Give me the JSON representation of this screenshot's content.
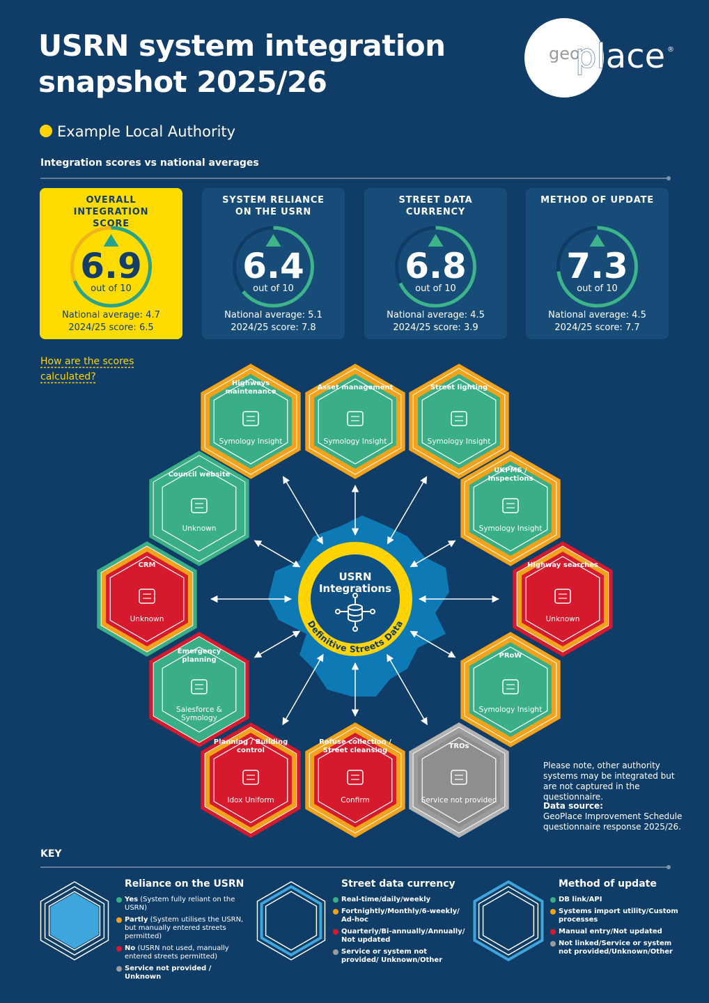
{
  "header": {
    "title": "USRN system integration snapshot 2025/26",
    "logo": {
      "prefix": "geo",
      "name": "place",
      "registered": "®"
    }
  },
  "authority": "Example Local Authority",
  "section_title": "Integration scores vs national averages",
  "scale": {
    "prefix": "out of",
    "max": 10
  },
  "scores": [
    {
      "title": "OVERALL INTEGRATION SCORE",
      "score": 6.9,
      "national": "National average: 4.7",
      "previous": "2024/25 score: 6.5"
    },
    {
      "title": "SYSTEM RELIANCE ON THE USRN",
      "score": 6.4,
      "national": "National average: 5.1",
      "previous": "2024/25 score: 7.8"
    },
    {
      "title": "STREET DATA CURRENCY",
      "score": 6.8,
      "national": "National average: 4.5",
      "previous": "2024/25 score: 3.9"
    },
    {
      "title": "METHOD OF UPDATE",
      "score": 7.3,
      "national": "National average: 4.5",
      "previous": "2024/25 score: 7.7"
    }
  ],
  "help_link": "How are the scores calculated?",
  "center": {
    "title": "USRN Integrations",
    "caption": "Definitive Streets Data"
  },
  "nodes": [
    {
      "label": "Highways maintenance",
      "system": "Symology Insight",
      "method": "#f2a31b",
      "currency": "#f2a31b",
      "reliance": "#3aae84"
    },
    {
      "label": "Asset management",
      "system": "Symology Insight",
      "method": "#f2a31b",
      "currency": "#f2a31b",
      "reliance": "#3aae84"
    },
    {
      "label": "Street lighting",
      "system": "Symology Insight",
      "method": "#f2a31b",
      "currency": "#f2a31b",
      "reliance": "#3aae84"
    },
    {
      "label": "UKPMS / Inspections",
      "system": "Symology Insight",
      "method": "#f2a31b",
      "currency": "#f2a31b",
      "reliance": "#3aae84"
    },
    {
      "label": "Highway searches",
      "system": "Unknown",
      "method": "#d7192d",
      "currency": "#f2a31b",
      "reliance": "#d7192d"
    },
    {
      "label": "PRoW",
      "system": "Symology Insight",
      "method": "#f2a31b",
      "currency": "#f2a31b",
      "reliance": "#3aae84"
    },
    {
      "label": "TROs",
      "system": "Service not provided",
      "method": "#b3b3b3",
      "currency": "#9c9c9c",
      "reliance": "#8e8e8e"
    },
    {
      "label": "Refuse collection / Street cleansing",
      "system": "Confirm",
      "method": "#f2a31b",
      "currency": "#f2a31b",
      "reliance": "#d7192d"
    },
    {
      "label": "Planning / Building control",
      "system": "Idox Uniform",
      "method": "#d7192d",
      "currency": "#f2a31b",
      "reliance": "#d7192d"
    },
    {
      "label": "Emergency planning",
      "system": "Salesforce & Symology",
      "method": "#d7192d",
      "currency": "#3aae84",
      "reliance": "#3aae84"
    },
    {
      "label": "CRM",
      "system": "Unknown",
      "method": "#3aae84",
      "currency": "#f2a31b",
      "reliance": "#d7192d"
    },
    {
      "label": "Council website",
      "system": "Unknown",
      "method": "#3aae84",
      "currency": "#3aae84",
      "reliance": "#3aae84"
    }
  ],
  "note": "Please note, other authority systems may be integrated but are not captured in the questionnaire.",
  "source": {
    "label": "Data source:",
    "text": "GeoPlace Improvement Schedule questionnaire response 2025/26."
  },
  "key": {
    "title": "KEY",
    "groups": [
      {
        "title": "Reliance on the USRN",
        "items": [
          {
            "color": "#3aae84",
            "term": "Yes",
            "text": "(System fully reliant on the USRN)"
          },
          {
            "color": "#f2a31b",
            "term": "Partly",
            "text": "(System utilises the USRN, but manually entered streets permitted)"
          },
          {
            "color": "#d7192d",
            "term": "No",
            "text": "(USRN not used, manually entered streets permitted)"
          },
          {
            "color": "#9c9c9c",
            "term": "Service not provided / Unknown"
          }
        ]
      },
      {
        "title": "Street data currency",
        "items": [
          {
            "color": "#3aae84",
            "term": "Real-time/daily/weekly"
          },
          {
            "color": "#f2a31b",
            "term": "Fortnightly/Monthly/6-weekly/ Ad-hoc"
          },
          {
            "color": "#d7192d",
            "term": "Quarterly/Bi-annually/Annually/ Not updated"
          },
          {
            "color": "#9c9c9c",
            "term": "Service or system not provided/ Unknown/Other"
          }
        ]
      },
      {
        "title": "Method of update",
        "items": [
          {
            "color": "#3aae84",
            "term": "DB link/API"
          },
          {
            "color": "#f2a31b",
            "term": "Systems import utility/Custom processes"
          },
          {
            "color": "#d7192d",
            "term": "Manual entry/Not updated"
          },
          {
            "color": "#9c9c9c",
            "term": "Not linked/Service or system not provided/Unknown/Other"
          }
        ]
      }
    ]
  }
}
